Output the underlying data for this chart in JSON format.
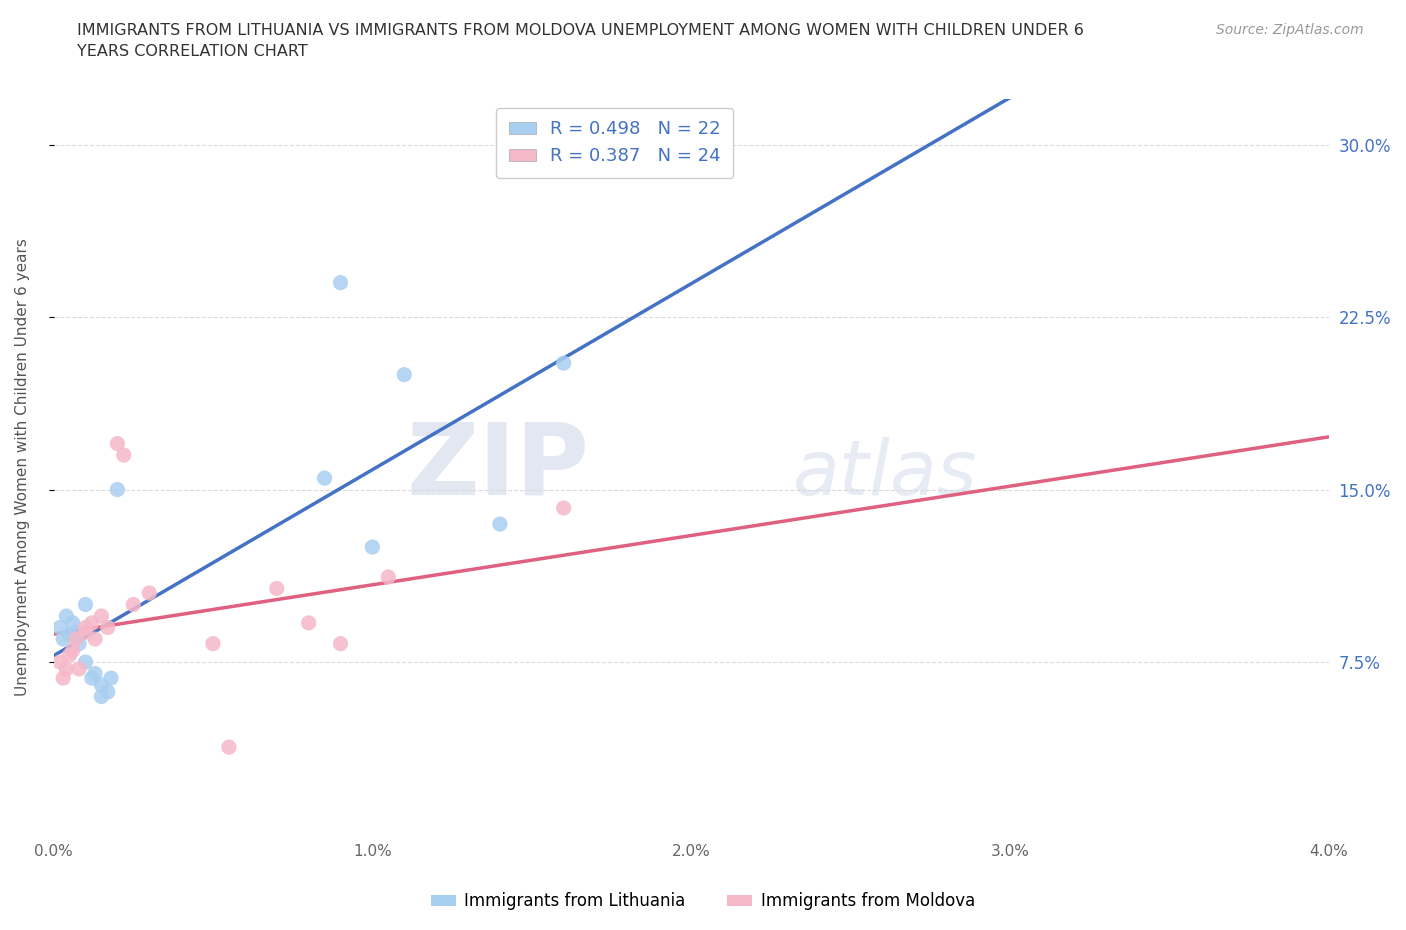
{
  "title": "IMMIGRANTS FROM LITHUANIA VS IMMIGRANTS FROM MOLDOVA UNEMPLOYMENT AMONG WOMEN WITH CHILDREN UNDER 6\nYEARS CORRELATION CHART",
  "source": "Source: ZipAtlas.com",
  "ylabel": "Unemployment Among Women with Children Under 6 years",
  "xlim": [
    0.0,
    0.04
  ],
  "ylim": [
    0.0,
    0.32
  ],
  "xticks": [
    0.0,
    0.01,
    0.02,
    0.03,
    0.04
  ],
  "xtick_labels": [
    "0.0%",
    "1.0%",
    "2.0%",
    "3.0%",
    "4.0%"
  ],
  "yticks_right": [
    0.075,
    0.15,
    0.225,
    0.3
  ],
  "ytick_labels_right": [
    "7.5%",
    "15.0%",
    "22.5%",
    "30.0%"
  ],
  "R_lithuania": 0.498,
  "N_lithuania": 22,
  "R_moldova": 0.387,
  "N_moldova": 24,
  "color_lithuania": "#a8cef0",
  "color_moldova": "#f5b8c8",
  "color_text_blue": "#4472c4",
  "color_line_lithuania": "#4472c4",
  "color_line_moldova": "#e06080",
  "scatter_lithuania_x": [
    0.0002,
    0.0003,
    0.0004,
    0.0005,
    0.0006,
    0.0007,
    0.0008,
    0.001,
    0.001,
    0.0012,
    0.0013,
    0.0015,
    0.0015,
    0.0017,
    0.0018,
    0.002,
    0.0085,
    0.009,
    0.01,
    0.011,
    0.014,
    0.016
  ],
  "scatter_lithuania_y": [
    0.09,
    0.085,
    0.095,
    0.087,
    0.092,
    0.088,
    0.083,
    0.075,
    0.1,
    0.068,
    0.07,
    0.06,
    0.065,
    0.062,
    0.068,
    0.15,
    0.155,
    0.24,
    0.125,
    0.2,
    0.135,
    0.205
  ],
  "scatter_moldova_x": [
    0.0002,
    0.0003,
    0.0004,
    0.0005,
    0.0006,
    0.0007,
    0.0008,
    0.001,
    0.001,
    0.0012,
    0.0013,
    0.0015,
    0.0017,
    0.002,
    0.0022,
    0.0025,
    0.003,
    0.005,
    0.0055,
    0.007,
    0.008,
    0.009,
    0.0105,
    0.016
  ],
  "scatter_moldova_y": [
    0.075,
    0.068,
    0.072,
    0.078,
    0.08,
    0.085,
    0.072,
    0.09,
    0.088,
    0.092,
    0.085,
    0.095,
    0.09,
    0.17,
    0.165,
    0.1,
    0.105,
    0.083,
    0.038,
    0.107,
    0.092,
    0.083,
    0.112,
    0.142
  ],
  "watermark_zip": "ZIP",
  "watermark_atlas": "atlas",
  "background_color": "#ffffff",
  "grid_color": "#cccccc"
}
